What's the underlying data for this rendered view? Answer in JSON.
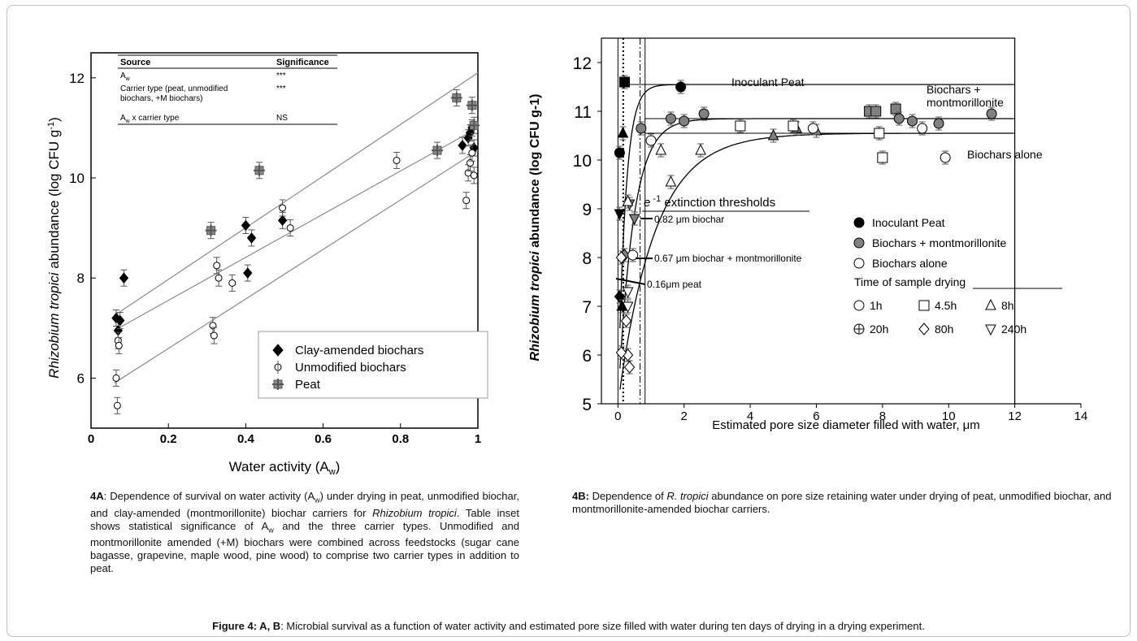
{
  "figure_caption": {
    "bold": "Figure 4: A, B",
    "rest": ": Microbial survival as a function of water activity and estimated pore size filled with water during ten days of drying in a drying experiment."
  },
  "caption_a": {
    "label": "4A",
    "parts": [
      ": Dependence of survival on water activity (A",
      "w",
      ") under drying in peat, unmodified biochar, and clay-amended (montmorillonite) biochar carriers for ",
      "Rhizobium tropici",
      ". Table inset shows statistical significance of A",
      "w",
      " and the three carrier types. Unmodified and montmorillonite amended (+M) biochars were combined across feedstocks (sugar cane bagasse, grapevine, maple wood, pine wood) to comprise two carrier types in addition to peat."
    ]
  },
  "caption_b": {
    "label": "4B:",
    "pre": " Dependence of ",
    "italic": "R. tropici",
    "post": " abundance on pore size retaining water under drying of peat, unmodified biochar, and montmorillonite-amended biochar carriers."
  },
  "colors": {
    "clay": "#000000",
    "unmodified": "#ffffff",
    "peat": "#8a8a8a",
    "fit_line": "#8c8c8c",
    "frame": "#bfbfbf"
  },
  "chart_data": [
    {
      "type": "scatter",
      "panel": "4A",
      "ylabel_italic": "Rhizobium tropici",
      "ylabel_rest": " abundance (log CFU g",
      "ylabel_sup": "-1",
      "ylabel_end": ")",
      "xlabel": "Water activity (A",
      "xlabel_sub": "w",
      "xlabel_end": ")",
      "xlim": [
        0,
        1
      ],
      "ylim": [
        5,
        12.5
      ],
      "xticks": [
        0,
        0.2,
        0.4,
        0.6,
        0.8,
        1
      ],
      "xtick_labels": [
        "0",
        "0.2",
        "0.4",
        "0.6",
        "0.8",
        "1"
      ],
      "yticks": [
        6,
        8,
        10,
        12
      ],
      "ytick_labels": [
        "6",
        "8",
        "10",
        "12"
      ],
      "inset_table": {
        "headers": [
          "Source",
          "Significance"
        ],
        "rows": [
          {
            "source": "A",
            "sub": "w",
            "sig": "***"
          },
          {
            "source": "Carrier type (peat, unmodified",
            "source2": "biochars,  +M biochars)",
            "sig": "***"
          },
          {
            "source": "A",
            "sub": "w",
            "tail": " x carrier type",
            "sig": "NS"
          }
        ]
      },
      "legend": {
        "position": "bottom-right",
        "entries": [
          "Clay-amended biochars",
          "Unmodified biochars",
          "Peat"
        ]
      },
      "series": [
        {
          "name": "Clay-amended biochars",
          "marker": "diamond",
          "points": [
            [
              0.065,
              7.2
            ],
            [
              0.07,
              6.95
            ],
            [
              0.075,
              7.15
            ],
            [
              0.085,
              8.0
            ],
            [
              0.4,
              9.05
            ],
            [
              0.405,
              8.1
            ],
            [
              0.415,
              8.8
            ],
            [
              0.495,
              9.15
            ],
            [
              0.96,
              10.65
            ],
            [
              0.975,
              10.8
            ],
            [
              0.98,
              10.9
            ],
            [
              0.985,
              11.0
            ],
            [
              0.99,
              10.6
            ]
          ],
          "fit": [
            [
              0.06,
              6.95
            ],
            [
              1.0,
              11.0
            ]
          ]
        },
        {
          "name": "Unmodified biochars",
          "marker": "circle",
          "points": [
            [
              0.065,
              6.0
            ],
            [
              0.068,
              5.45
            ],
            [
              0.07,
              6.75
            ],
            [
              0.072,
              6.65
            ],
            [
              0.315,
              7.05
            ],
            [
              0.318,
              6.85
            ],
            [
              0.325,
              8.25
            ],
            [
              0.33,
              8.0
            ],
            [
              0.365,
              7.9
            ],
            [
              0.495,
              9.4
            ],
            [
              0.515,
              9.0
            ],
            [
              0.79,
              10.35
            ],
            [
              0.97,
              9.55
            ],
            [
              0.975,
              10.1
            ],
            [
              0.98,
              10.3
            ],
            [
              0.985,
              10.5
            ],
            [
              0.99,
              10.05
            ]
          ],
          "fit": [
            [
              0.06,
              5.9
            ],
            [
              1.0,
              10.55
            ]
          ]
        },
        {
          "name": "Peat",
          "marker": "cross-square",
          "points": [
            [
              0.31,
              8.95
            ],
            [
              0.435,
              10.15
            ],
            [
              0.895,
              10.55
            ],
            [
              0.945,
              11.6
            ],
            [
              0.985,
              11.45
            ],
            [
              0.99,
              11.05
            ]
          ],
          "fit": [
            [
              0.06,
              7.25
            ],
            [
              1.0,
              12.1
            ]
          ]
        }
      ]
    },
    {
      "type": "scatter",
      "panel": "4B",
      "ylabel_italic": "Rhizobium tropici",
      "ylabel_rest": " abundance (log CFU g-1)",
      "xlabel": "Estimated pore size diameter filled with water, μm",
      "xlim": [
        -0.5,
        14
      ],
      "ylim": [
        5,
        12.5
      ],
      "xticks": [
        0,
        2,
        4,
        6,
        8,
        10,
        12,
        14
      ],
      "xtick_labels": [
        "0",
        "2",
        "4",
        "6",
        "8",
        "10",
        "12",
        "14"
      ],
      "yticks": [
        5,
        6,
        7,
        8,
        9,
        10,
        11,
        12
      ],
      "ytick_labels": [
        "5",
        "6",
        "7",
        "8",
        "9",
        "10",
        "11",
        "12"
      ],
      "thresholds_title_e": "e",
      "thresholds_title_sup": " -1",
      "thresholds_title_rest": " extinction thresholds",
      "thresholds": [
        {
          "x": 0.82,
          "label": "0.82 μm biochar"
        },
        {
          "x": 0.67,
          "label": "0.67 μm biochar + montmorillonite"
        },
        {
          "x": 0.16,
          "label": "0.16μm peat"
        }
      ],
      "curve_labels": [
        "Inoculant Peat",
        "Biochars +",
        "montmorillonite",
        "Biochars alone"
      ],
      "legend": {
        "position": "center-right",
        "entries": [
          "Inoculant Peat",
          "Biochars + montmorillonite",
          "Biochars alone"
        ],
        "time_title": "Time of sample drying",
        "times": [
          "1h",
          "4.5h",
          "8h",
          "20h",
          "80h",
          "240h"
        ]
      },
      "series": [
        {
          "name": "Inoculant Peat",
          "fill": "black",
          "plateau": 11.55,
          "points": [
            [
              0.05,
              10.15,
              "circle"
            ],
            [
              0.2,
              11.6,
              "square"
            ],
            [
              0.15,
              10.55,
              "triangle"
            ],
            [
              1.9,
              11.5,
              "circle"
            ],
            [
              0.05,
              8.9,
              "tri-down"
            ],
            [
              0.05,
              7.2,
              "diamond"
            ],
            [
              0.12,
              7.0,
              "triangle"
            ]
          ]
        },
        {
          "name": "Biochars + montmorillonite",
          "fill": "gray",
          "plateau": 10.85,
          "points": [
            [
              0.7,
              10.65,
              "circle"
            ],
            [
              1.6,
              10.85,
              "circle"
            ],
            [
              2.0,
              10.8,
              "circle"
            ],
            [
              2.6,
              10.95,
              "circle"
            ],
            [
              7.6,
              11.0,
              "square"
            ],
            [
              7.8,
              11.0,
              "square"
            ],
            [
              8.4,
              11.05,
              "square"
            ],
            [
              8.5,
              10.85,
              "circle"
            ],
            [
              8.9,
              10.8,
              "circle"
            ],
            [
              9.7,
              10.75,
              "circle"
            ],
            [
              11.3,
              10.95,
              "circle"
            ],
            [
              4.7,
              10.5,
              "triangle"
            ],
            [
              5.4,
              10.65,
              "triangle"
            ],
            [
              6.0,
              10.6,
              "triangle"
            ],
            [
              0.2,
              8.05,
              "diamond"
            ],
            [
              0.35,
              9.1,
              "tri-down"
            ],
            [
              0.5,
              8.8,
              "tri-down"
            ]
          ]
        },
        {
          "name": "Biochars alone",
          "fill": "white",
          "plateau": 10.55,
          "points": [
            [
              1.0,
              10.4,
              "circle"
            ],
            [
              3.7,
              10.7,
              "square"
            ],
            [
              5.3,
              10.7,
              "square"
            ],
            [
              5.9,
              10.65,
              "circle"
            ],
            [
              7.9,
              10.55,
              "square"
            ],
            [
              8.0,
              10.05,
              "square"
            ],
            [
              9.2,
              10.65,
              "circle"
            ],
            [
              9.9,
              10.05,
              "circle"
            ],
            [
              1.3,
              10.2,
              "triangle"
            ],
            [
              1.6,
              9.55,
              "triangle"
            ],
            [
              2.5,
              10.2,
              "triangle"
            ],
            [
              0.3,
              9.15,
              "triangle"
            ],
            [
              0.45,
              8.05,
              "circle"
            ],
            [
              0.1,
              8.0,
              "diamond"
            ],
            [
              0.3,
              7.3,
              "tri-down"
            ],
            [
              0.25,
              6.7,
              "diamond"
            ],
            [
              0.3,
              6.0,
              "diamond"
            ],
            [
              0.35,
              5.75,
              "diamond"
            ],
            [
              0.3,
              7.0,
              "tri-down"
            ],
            [
              0.1,
              6.05,
              "diamond"
            ]
          ]
        }
      ]
    }
  ]
}
